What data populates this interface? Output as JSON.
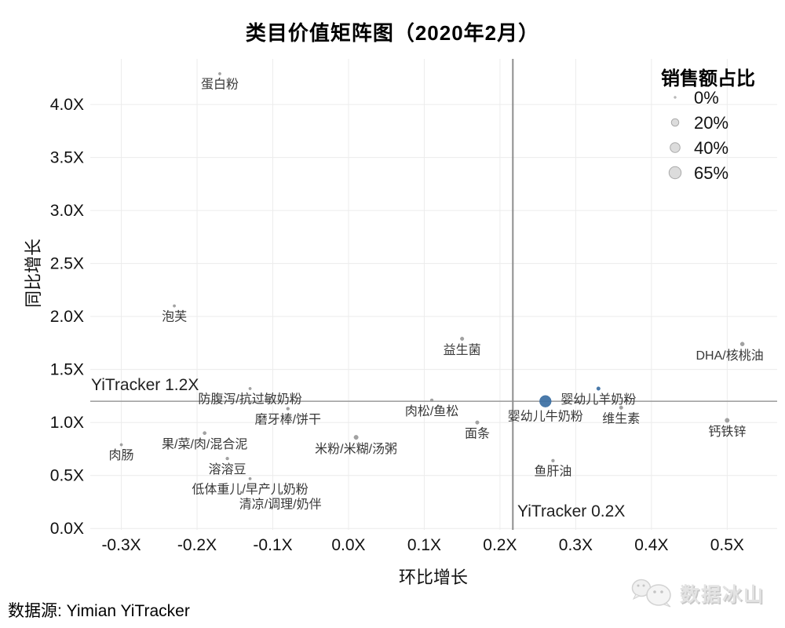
{
  "title": "类目价值矩阵图（2020年2月）",
  "source": "数据源: Yimian YiTracker",
  "watermark": {
    "text": "数据冰山",
    "icon": "chat-bubbles-logo"
  },
  "legend": {
    "title": "销售额占比",
    "items": [
      {
        "label": "0%",
        "pct": 0
      },
      {
        "label": "20%",
        "pct": 20
      },
      {
        "label": "40%",
        "pct": 40
      },
      {
        "label": "65%",
        "pct": 65
      }
    ]
  },
  "colors": {
    "highlight_blue": "#3b6fa3",
    "dot_gray": "#9a9a9a",
    "legend_bubble": "#dcdcdc",
    "refline_h": "#a2a2a2",
    "refline_v": "#8d8d8d",
    "grid": "#ececec",
    "point_label": "#383838",
    "watermark_gray": "#e3e3e3"
  },
  "chart_data": {
    "type": "scatter",
    "title": "类目价值矩阵图（2020年2月）",
    "xlabel": "环比增长",
    "ylabel": "同比增长",
    "x_ticks": [
      "-0.3X",
      "-0.2X",
      "-0.1X",
      "0.0X",
      "0.1X",
      "0.2X",
      "0.3X",
      "0.4X",
      "0.5X"
    ],
    "x_tick_values": [
      -0.3,
      -0.2,
      -0.1,
      0.0,
      0.1,
      0.2,
      0.3,
      0.4,
      0.5
    ],
    "y_ticks": [
      "0.0X",
      "0.5X",
      "1.0X",
      "1.5X",
      "2.0X",
      "2.5X",
      "3.0X",
      "3.5X",
      "4.0X"
    ],
    "y_tick_values": [
      0.0,
      0.5,
      1.0,
      1.5,
      2.0,
      2.5,
      3.0,
      3.5,
      4.0
    ],
    "xlim": [
      -0.341,
      0.566
    ],
    "ylim": [
      -0.013,
      4.43
    ],
    "grid": true,
    "size_legend_label": "销售额占比",
    "reference_lines": [
      {
        "axis": "y",
        "value": 1.2,
        "label": "YiTracker 1.2X"
      },
      {
        "axis": "x",
        "value": 0.2,
        "label": "YiTracker 0.2X",
        "position": 0.217
      }
    ],
    "points": [
      {
        "label": "蛋白粉",
        "x": -0.17,
        "y": 4.29,
        "share_pct": 0.5,
        "color": "gray"
      },
      {
        "label": "泡芙",
        "x": -0.23,
        "y": 2.1,
        "share_pct": 0.5,
        "color": "gray"
      },
      {
        "label": "益生菌",
        "x": 0.15,
        "y": 1.79,
        "share_pct": 2,
        "color": "gray"
      },
      {
        "label": "DHA/核桃油",
        "x": 0.52,
        "y": 1.74,
        "share_pct": 3,
        "color": "gray",
        "label_dx": -16
      },
      {
        "label": "钙铁锌",
        "x": 0.5,
        "y": 1.02,
        "share_pct": 4,
        "color": "gray"
      },
      {
        "label": "防腹泻/抗过敏奶粉",
        "x": -0.13,
        "y": 1.32,
        "share_pct": 0.5,
        "color": "gray"
      },
      {
        "label": "磨牙棒/饼干",
        "x": -0.08,
        "y": 1.13,
        "share_pct": 1,
        "color": "gray"
      },
      {
        "label": "肉松/鱼松",
        "x": 0.11,
        "y": 1.21,
        "share_pct": 1,
        "color": "gray"
      },
      {
        "label": "面条",
        "x": 0.17,
        "y": 1.0,
        "share_pct": 2,
        "color": "gray"
      },
      {
        "label": "米粉/米糊/汤粥",
        "x": 0.01,
        "y": 0.86,
        "share_pct": 4,
        "color": "gray"
      },
      {
        "label": "果/菜/肉/混合泥",
        "x": -0.19,
        "y": 0.9,
        "share_pct": 1.5,
        "color": "gray"
      },
      {
        "label": "肉肠",
        "x": -0.3,
        "y": 0.79,
        "share_pct": 0.5,
        "color": "gray"
      },
      {
        "label": "溶溶豆",
        "x": -0.16,
        "y": 0.66,
        "share_pct": 1,
        "color": "gray"
      },
      {
        "label": "低体重儿/早产儿奶粉",
        "x": -0.13,
        "y": 0.47,
        "share_pct": 0.5,
        "color": "gray"
      },
      {
        "label": "清凉/调理/奶伴",
        "x": -0.09,
        "y": 0.33,
        "share_pct": 0.5,
        "color": "gray"
      },
      {
        "label": "鱼肝油",
        "x": 0.27,
        "y": 0.64,
        "share_pct": 1,
        "color": "gray"
      },
      {
        "label": "婴幼儿牛奶粉",
        "x": 0.26,
        "y": 1.2,
        "share_pct": 60,
        "color": "blue"
      },
      {
        "label": "婴幼儿羊奶粉",
        "x": 0.33,
        "y": 1.32,
        "share_pct": 2,
        "color": "blue"
      },
      {
        "label": "维生素",
        "x": 0.36,
        "y": 1.14,
        "share_pct": 2,
        "color": "gray"
      }
    ]
  }
}
